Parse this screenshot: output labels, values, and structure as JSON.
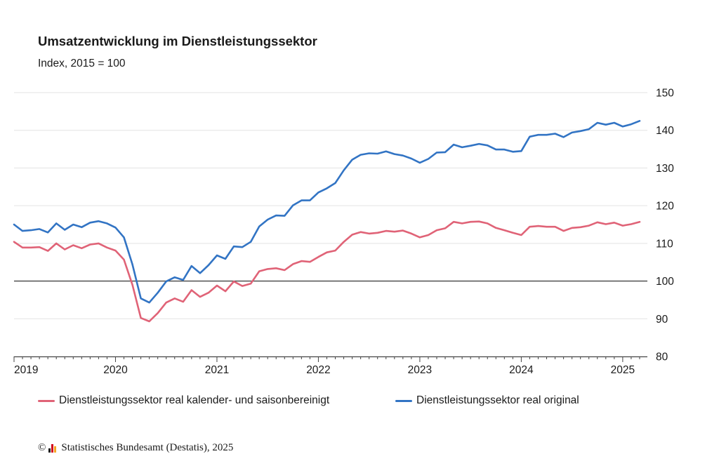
{
  "chart_data": {
    "type": "line",
    "title": "Umsatzentwicklung im Dienstleistungssektor",
    "subtitle": "Index, 2015 = 100",
    "x_start": "2019-01",
    "x_tick_labels": [
      "2019",
      "2020",
      "2021",
      "2022",
      "2023",
      "2024",
      "2025"
    ],
    "y_tick_labels": [
      "80",
      "90",
      "100",
      "110",
      "120",
      "130",
      "140",
      "150"
    ],
    "ylim": [
      80,
      150
    ],
    "reference_line": 100,
    "grid": true,
    "legend_position": "bottom",
    "series": [
      {
        "name": "Dienstleistungssektor real kalender- und saisonbereinigt",
        "color": "#e06377",
        "values": [
          110.4,
          108.9,
          108.9,
          109.0,
          108.0,
          110.0,
          108.4,
          109.5,
          108.7,
          109.7,
          110.0,
          108.9,
          108.1,
          105.7,
          99.0,
          90.2,
          89.3,
          91.5,
          94.3,
          95.4,
          94.5,
          97.6,
          95.8,
          96.9,
          98.8,
          97.3,
          99.9,
          98.7,
          99.3,
          102.6,
          103.2,
          103.4,
          102.9,
          104.5,
          105.3,
          105.1,
          106.4,
          107.6,
          108.1,
          110.4,
          112.3,
          113.0,
          112.6,
          112.8,
          113.3,
          113.1,
          113.4,
          112.6,
          111.6,
          112.2,
          113.5,
          114.0,
          115.7,
          115.3,
          115.7,
          115.8,
          115.3,
          114.1,
          113.5,
          112.8,
          112.2,
          114.4,
          114.6,
          114.4,
          114.4,
          113.3,
          114.1,
          114.3,
          114.7,
          115.6,
          115.1,
          115.5,
          114.7,
          115.1,
          115.7
        ]
      },
      {
        "name": "Dienstleistungssektor real original",
        "color": "#3274c4",
        "values": [
          115.0,
          113.3,
          113.5,
          113.8,
          112.9,
          115.3,
          113.6,
          115.0,
          114.3,
          115.5,
          115.9,
          115.3,
          114.2,
          111.6,
          104.4,
          95.4,
          94.3,
          96.9,
          99.9,
          101.0,
          100.3,
          104.0,
          102.1,
          104.2,
          106.8,
          105.9,
          109.2,
          109.0,
          110.4,
          114.5,
          116.3,
          117.4,
          117.3,
          120.1,
          121.4,
          121.4,
          123.5,
          124.6,
          126.0,
          129.4,
          132.2,
          133.5,
          133.9,
          133.8,
          134.4,
          133.7,
          133.3,
          132.5,
          131.4,
          132.4,
          134.1,
          134.2,
          136.2,
          135.5,
          135.9,
          136.4,
          136.0,
          134.9,
          134.9,
          134.3,
          134.5,
          138.3,
          138.8,
          138.8,
          139.1,
          138.2,
          139.4,
          139.8,
          140.3,
          142.0,
          141.5,
          142.0,
          141.0,
          141.6,
          142.5
        ]
      }
    ]
  },
  "source": {
    "copyright_symbol": "©",
    "text": "Statistisches Bundesamt (Destatis), 2025",
    "logo_colors": [
      "#1a1a1a",
      "#d0021b",
      "#f5a623"
    ]
  }
}
